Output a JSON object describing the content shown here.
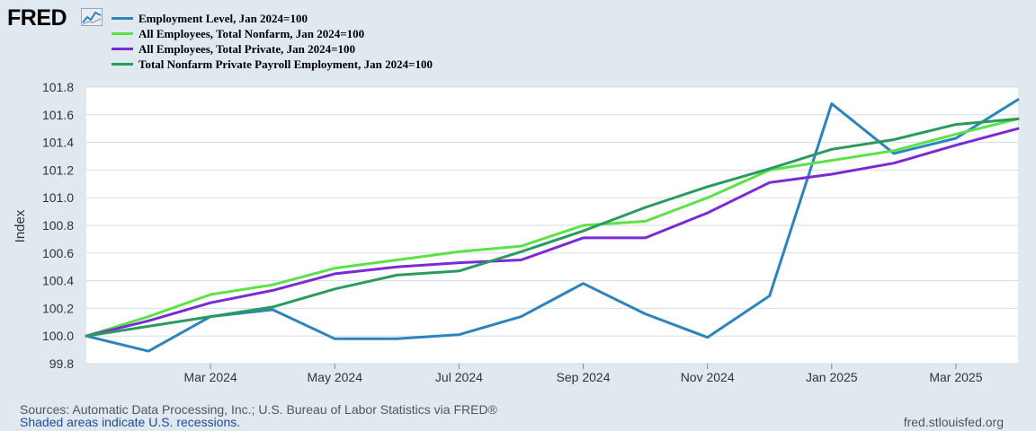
{
  "brand": {
    "logo_text": "FRED"
  },
  "footer": {
    "sources": "Sources: Automatic Data Processing, Inc.; U.S. Bureau of Labor Statistics via FRED®",
    "recessions": "Shaded areas indicate U.S. recessions.",
    "url": "fred.stlouisfed.org"
  },
  "colors": {
    "background": "#e1e9f0",
    "plot_bg": "#ffffff",
    "grid": "#d5dde5"
  },
  "chart_data": {
    "type": "line",
    "title": "",
    "xlabel": "",
    "ylabel": "Index",
    "ylim": [
      99.8,
      101.8
    ],
    "grid": true,
    "legend_position": "top-left",
    "x": [
      "2024-01",
      "2024-02",
      "2024-03",
      "2024-04",
      "2024-05",
      "2024-06",
      "2024-07",
      "2024-08",
      "2024-09",
      "2024-10",
      "2024-11",
      "2024-12",
      "2025-01",
      "2025-02",
      "2025-03",
      "2025-04"
    ],
    "x_tick_labels": [
      "Mar 2024",
      "May 2024",
      "Jul 2024",
      "Sep 2024",
      "Nov 2024",
      "Jan 2025",
      "Mar 2025"
    ],
    "x_tick_indices": [
      2,
      4,
      6,
      8,
      10,
      12,
      14
    ],
    "y_ticks": [
      99.8,
      100.0,
      100.2,
      100.4,
      100.6,
      100.8,
      101.0,
      101.2,
      101.4,
      101.6,
      101.8
    ],
    "y_tick_labels": [
      "99.8",
      "100.0",
      "100.2",
      "100.4",
      "100.6",
      "100.8",
      "101.0",
      "101.2",
      "101.4",
      "101.6",
      "101.8"
    ],
    "series": [
      {
        "name": "Employment Level, Jan 2024=100",
        "color": "#2e83be",
        "values": [
          100.0,
          99.89,
          100.14,
          100.19,
          99.98,
          99.98,
          100.01,
          100.14,
          100.38,
          100.16,
          99.99,
          100.29,
          101.68,
          101.32,
          101.43,
          101.71
        ]
      },
      {
        "name": "All Employees, Total Nonfarm, Jan 2024=100",
        "color": "#5ae347",
        "values": [
          100.0,
          100.14,
          100.3,
          100.37,
          100.49,
          100.55,
          100.61,
          100.65,
          100.8,
          100.83,
          101.0,
          101.2,
          101.27,
          101.34,
          101.46,
          101.57
        ]
      },
      {
        "name": "All Employees, Total Private, Jan 2024=100",
        "color": "#7b2bd3",
        "values": [
          100.0,
          100.11,
          100.24,
          100.33,
          100.45,
          100.5,
          100.53,
          100.55,
          100.71,
          100.71,
          100.89,
          101.11,
          101.17,
          101.25,
          101.38,
          101.5
        ]
      },
      {
        "name": "Total Nonfarm Private Payroll Employment, Jan 2024=100",
        "color": "#2a9b5e",
        "values": [
          100.0,
          100.07,
          100.14,
          100.21,
          100.34,
          100.44,
          100.47,
          100.61,
          100.76,
          100.93,
          101.08,
          101.21,
          101.35,
          101.42,
          101.53,
          101.57
        ]
      }
    ]
  }
}
